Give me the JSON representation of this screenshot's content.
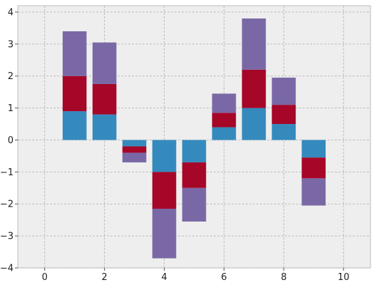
{
  "chart_data": {
    "type": "bar",
    "stacked": true,
    "title": "",
    "xlabel": "",
    "ylabel": "",
    "x": [
      1,
      2,
      3,
      4,
      5,
      6,
      7,
      8,
      9,
      10
    ],
    "bar_width": 0.8,
    "xlim": [
      -0.9,
      10.9
    ],
    "ylim": [
      -4.0,
      4.2
    ],
    "xticks": [
      0,
      2,
      4,
      6,
      8,
      10
    ],
    "xtick_labels": [
      "0",
      "2",
      "4",
      "6",
      "8",
      "10"
    ],
    "yticks": [
      -4,
      -3,
      -2,
      -1,
      0,
      1,
      2,
      3,
      4
    ],
    "ytick_labels": [
      "−4",
      "−3",
      "−2",
      "−1",
      "0",
      "1",
      "2",
      "3",
      "4"
    ],
    "grid": true,
    "legend": false,
    "series": [
      {
        "color": "#348ABD",
        "values": [
          0.9,
          0.8,
          -0.2,
          -1.0,
          -0.7,
          0.4,
          1.0,
          0.5,
          -0.55,
          0.0
        ]
      },
      {
        "color": "#A60628",
        "values": [
          1.1,
          0.95,
          -0.2,
          -1.15,
          -0.8,
          0.45,
          1.2,
          0.6,
          -0.65,
          0.0
        ]
      },
      {
        "color": "#7A68A6",
        "values": [
          1.4,
          1.3,
          -0.3,
          -1.55,
          -1.05,
          0.6,
          1.6,
          0.85,
          -0.85,
          0.0
        ]
      }
    ],
    "colors": {
      "background": "#EEEEEE",
      "grid": "#B0B0B0"
    }
  }
}
